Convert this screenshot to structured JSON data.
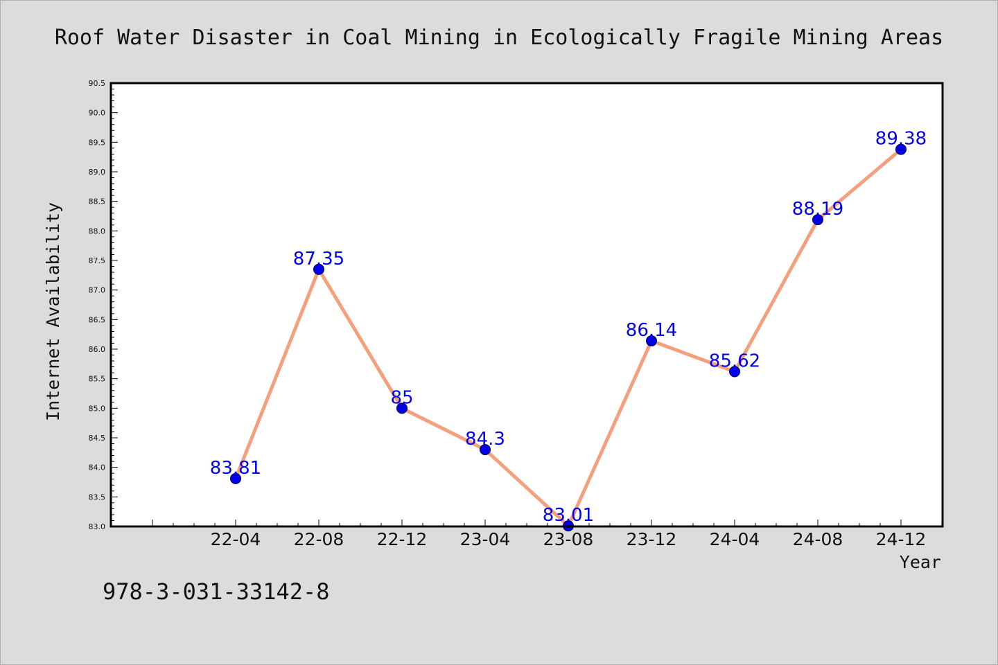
{
  "footer_text": "978-3-031-33142-8",
  "colors": {
    "background": "#dcdcdc",
    "plot_background": "#ffffff",
    "line": "#f4a07c",
    "marker": "#0000ee",
    "label": "#0000ee",
    "axis": "#000000"
  },
  "chart_data": {
    "type": "line",
    "title": "Roof Water Disaster in Coal Mining in Ecologically Fragile Mining Areas",
    "xlabel": "Year",
    "ylabel": "Internet Availability",
    "categories": [
      "22-04",
      "22-08",
      "22-12",
      "23-04",
      "23-08",
      "23-12",
      "24-04",
      "24-08",
      "24-12"
    ],
    "series": [
      {
        "values": [
          83.81,
          87.35,
          85,
          84.3,
          83.01,
          86.14,
          85.62,
          88.19,
          89.38
        ],
        "labels": [
          "83.81",
          "87.35",
          "85",
          "84.3",
          "83.01",
          "86.14",
          "85.62",
          "88.19",
          "89.38"
        ]
      }
    ],
    "ylim": [
      83.0,
      90.5
    ],
    "yticks": [
      "83.0",
      "83.5",
      "84.0",
      "84.5",
      "85.0",
      "85.5",
      "86.0",
      "86.5",
      "87.0",
      "87.5",
      "88.0",
      "88.5",
      "89.0",
      "89.5",
      "90.0",
      "90.5"
    ],
    "grid": false,
    "legend": "none"
  }
}
